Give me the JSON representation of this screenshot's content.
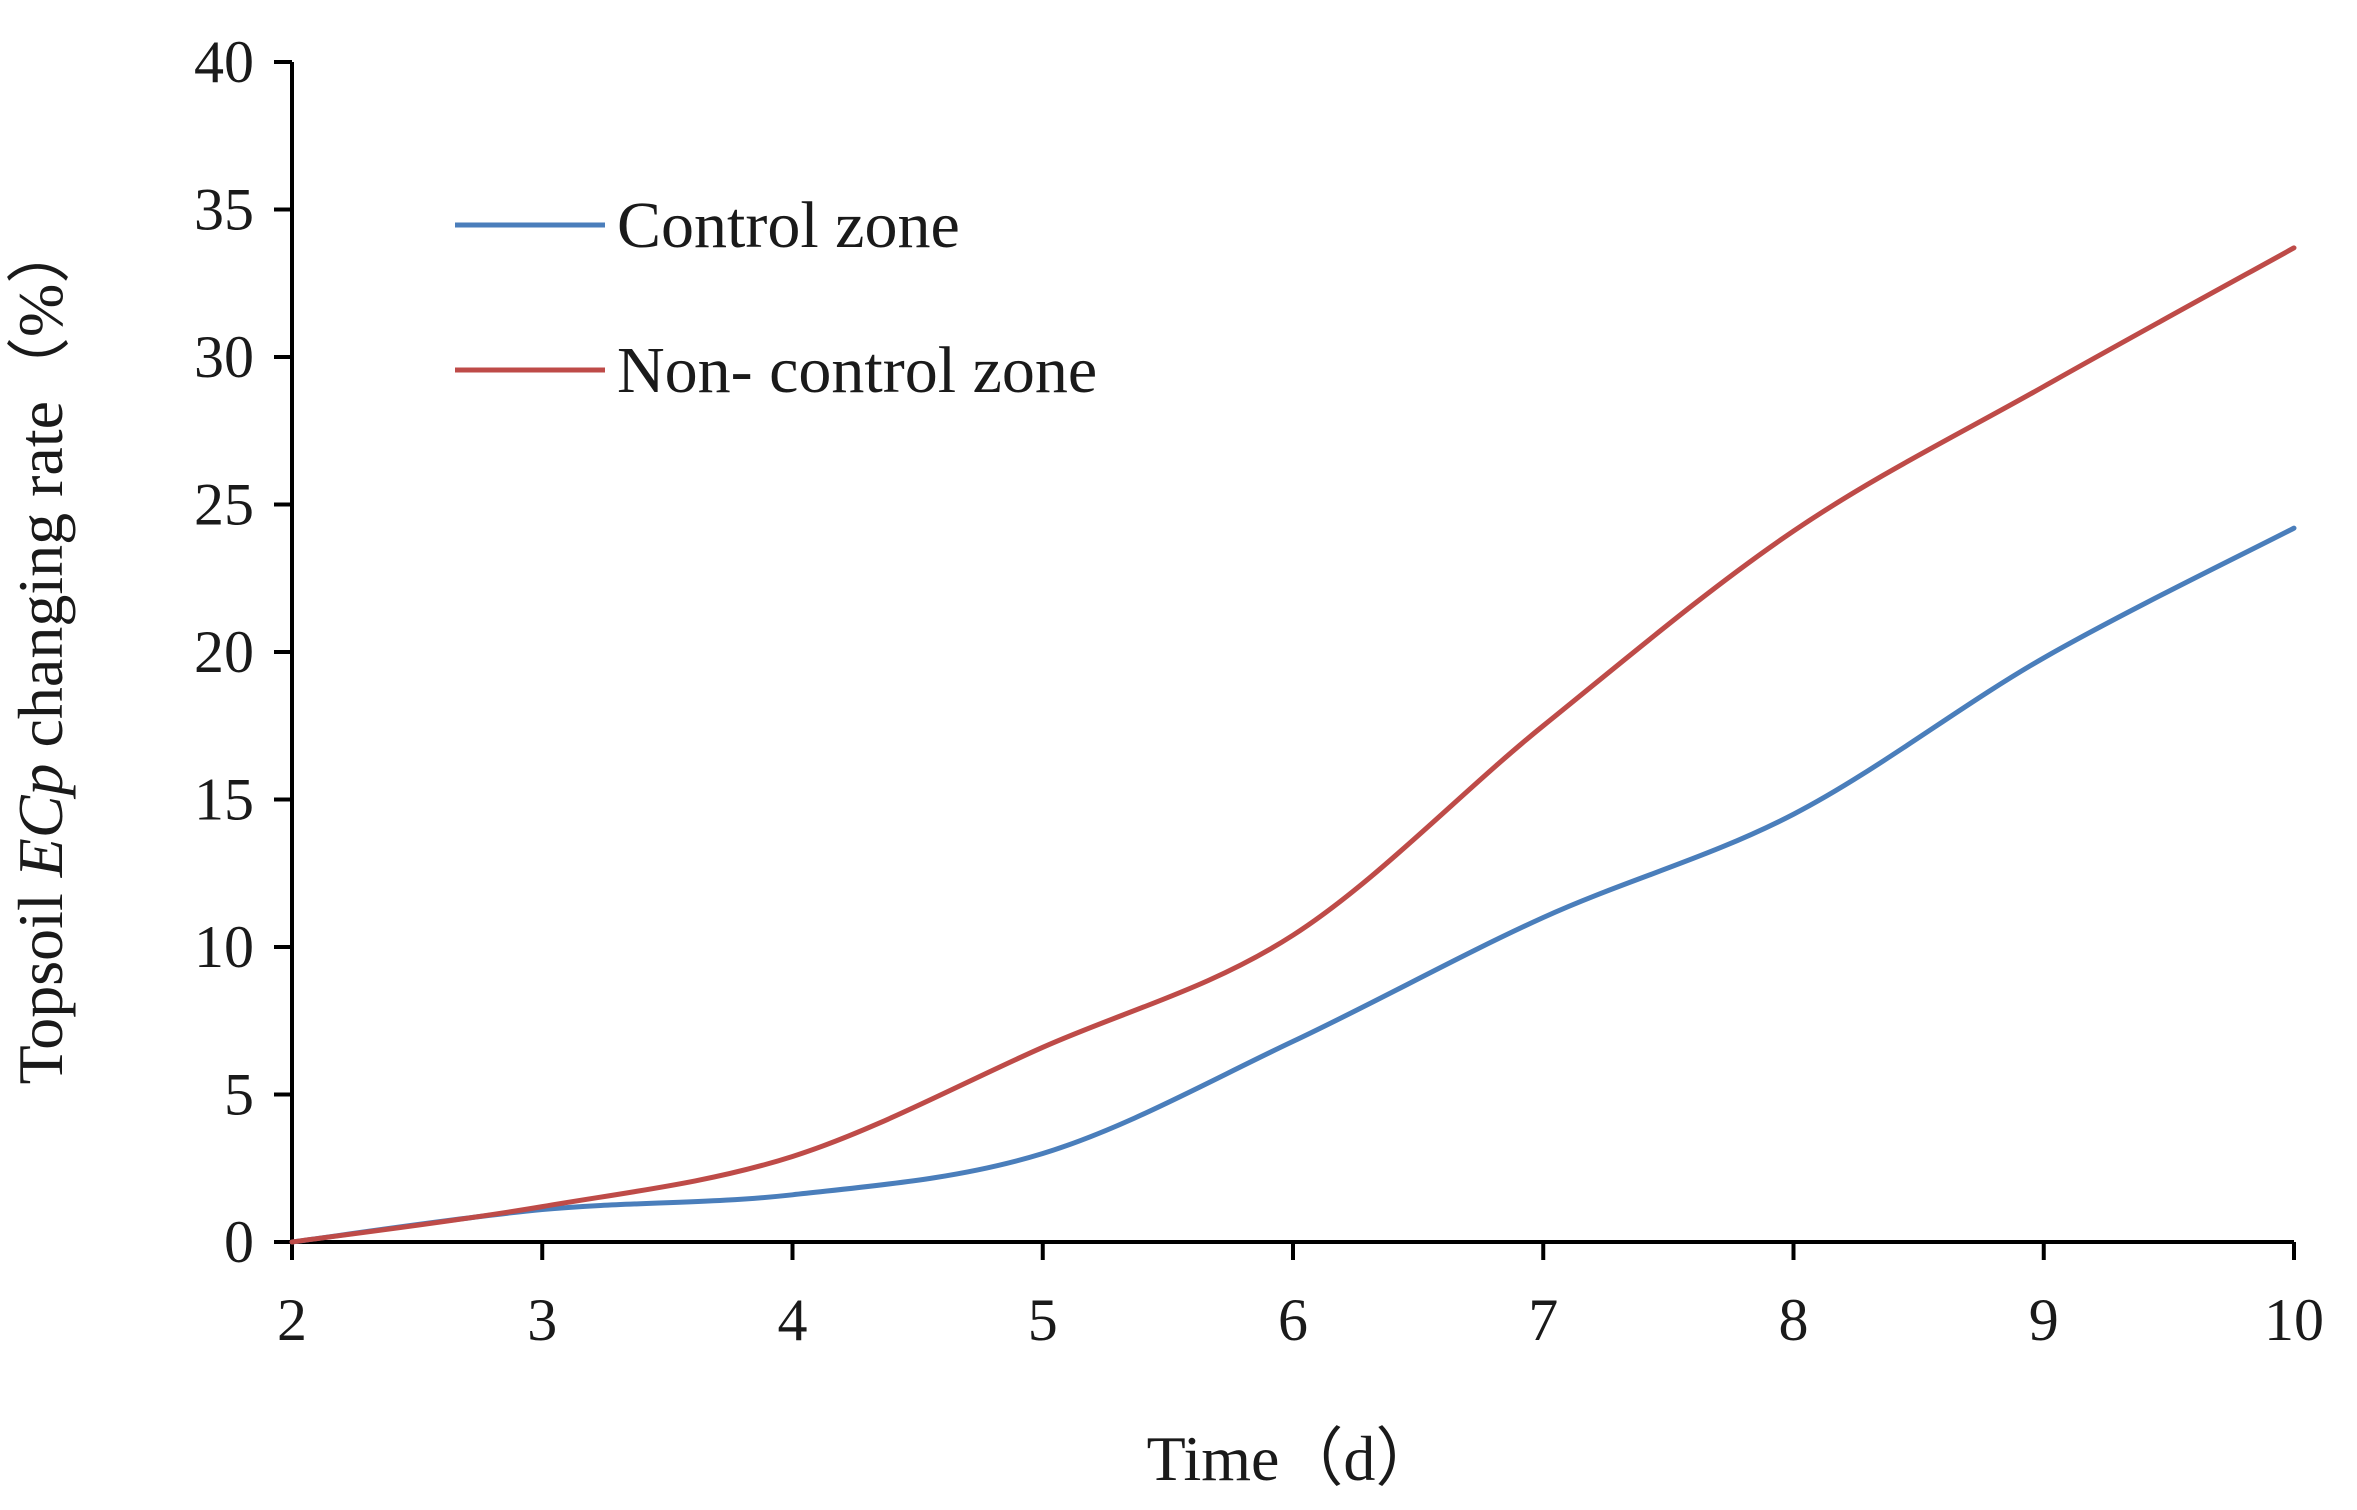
{
  "chart_data": {
    "type": "line",
    "x": [
      2,
      3,
      4,
      5,
      6,
      7,
      8,
      9,
      10
    ],
    "series": [
      {
        "name": "Control zone",
        "color": "#4a7ebb",
        "values": [
          0,
          1.1,
          1.6,
          3.0,
          6.8,
          11.0,
          14.5,
          19.8,
          24.2
        ]
      },
      {
        "name": "Non- control zone",
        "color": "#be4b48",
        "values": [
          0,
          1.2,
          2.9,
          6.6,
          10.4,
          17.5,
          24.1,
          29.0,
          33.7
        ]
      }
    ],
    "xlabel": "Time（d）",
    "ylabel_parts": [
      "Topsoil ",
      "ECp",
      " changing rate（%）"
    ],
    "xlim": [
      2,
      10
    ],
    "ylim": [
      0,
      40
    ],
    "xticks": [
      "2",
      "3",
      "4",
      "5",
      "6",
      "7",
      "8",
      "9",
      "10"
    ],
    "yticks": [
      "0",
      "5",
      "10",
      "15",
      "20",
      "25",
      "30",
      "35",
      "40"
    ],
    "grid": false,
    "legend_position": "top-left"
  }
}
